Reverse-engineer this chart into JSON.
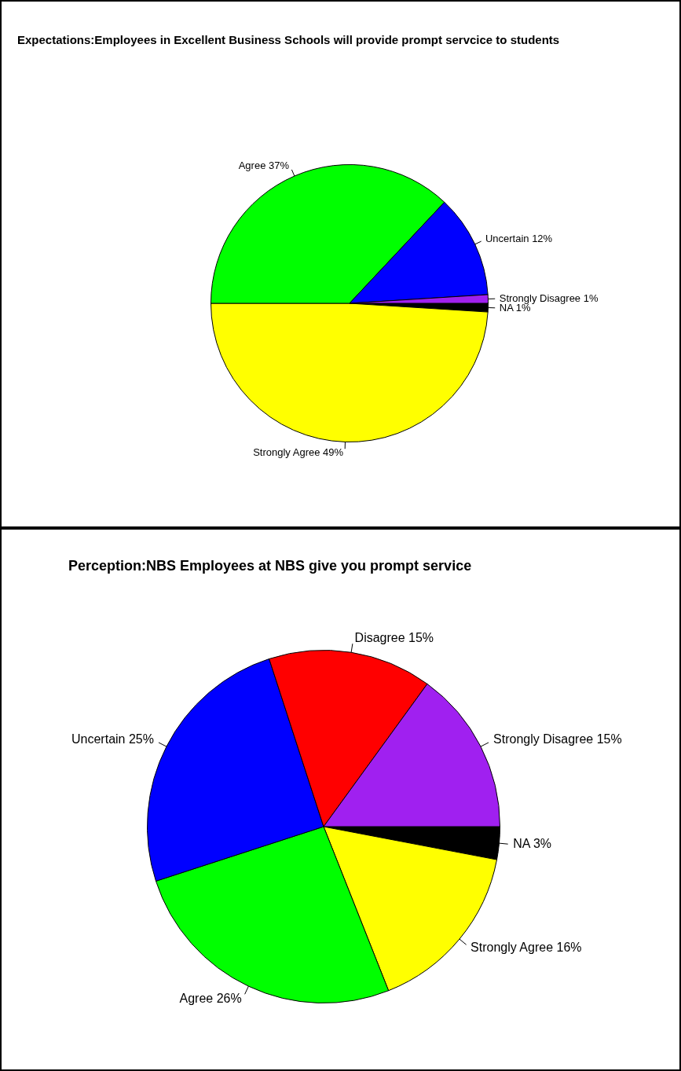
{
  "chart_data": [
    {
      "type": "pie",
      "title": "Expectations:Employees in Excellent Business Schools will provide prompt servcice to students",
      "categories": [
        "NA",
        "Strongly Agree",
        "Agree",
        "Uncertain",
        "Strongly Disagree"
      ],
      "values": [
        1,
        49,
        37,
        12,
        1
      ],
      "value_labels": [
        "1%",
        "49%",
        "37%",
        "12%",
        "1%"
      ],
      "colors": [
        "#000000",
        "#ffff00",
        "#00ff00",
        "#0000ff",
        "#a020f0"
      ],
      "legend": false
    },
    {
      "type": "pie",
      "title": "Perception:NBS Employees at NBS give you prompt service",
      "categories": [
        "NA",
        "Strongly Agree",
        "Agree",
        "Uncertain",
        "Disagree",
        "Strongly Disagree"
      ],
      "values": [
        3,
        16,
        26,
        25,
        15,
        15
      ],
      "value_labels": [
        "3%",
        "16%",
        "26%",
        "25%",
        "15%",
        "15%"
      ],
      "colors": [
        "#000000",
        "#ffff00",
        "#00ff00",
        "#0000ff",
        "#ff0000",
        "#a020f0"
      ],
      "legend": false
    }
  ]
}
